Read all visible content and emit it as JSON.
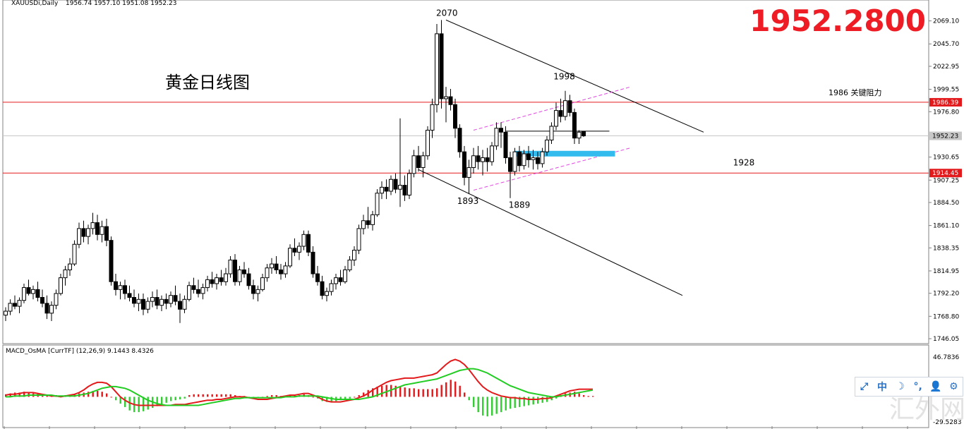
{
  "header": {
    "symbol": "XAUUSDi,Daily",
    "ohlc": "1956.74 1957.10 1951.08 1952.23"
  },
  "price_banner": {
    "text": "1952.2800",
    "color": "#ee1c24"
  },
  "chart_title": {
    "text": "黄金日线图"
  },
  "indicator_header": {
    "text": "MACD_OsMA [CurrTF] (12,26,9) 9.1443 8.4326"
  },
  "watermark": {
    "text": "汇外网"
  },
  "toolbar": {
    "icons": [
      "resize-icon",
      "chinese-input-icon",
      "moon-icon",
      "punctuation-icon",
      "user-icon",
      "settings-icon"
    ],
    "labels": [
      "⤢",
      "中",
      "☽",
      "°,",
      "👤",
      "⚙"
    ]
  },
  "chart_data": [
    {
      "type": "candlestick",
      "instrument": "XAUUSDi",
      "timeframe": "Daily",
      "last_price": 1952.23,
      "ylim": [
        1746.05,
        2076
      ],
      "y_ticks": [
        "2069.10",
        "2045.70",
        "2022.95",
        "1999.55",
        "1976.80",
        "1952.23",
        "1930.65",
        "1907.25",
        "1884.50",
        "1861.10",
        "1838.35",
        "1814.95",
        "1792.20",
        "1768.80",
        "1746.05"
      ],
      "price_tags": [
        {
          "label": "1986.39",
          "value": 1986.39,
          "color": "#e31a1c"
        },
        {
          "label": "1952.23",
          "value": 1952.23,
          "color": "#c8c8c8"
        },
        {
          "label": "1914.45",
          "value": 1914.45,
          "color": "#e31a1c"
        }
      ],
      "horizontal_lines": [
        {
          "value": 1986.39,
          "color": "#e31a1c",
          "note": "1986 关键阻力"
        },
        {
          "value": 1952.23,
          "color": "#c8c8c8"
        },
        {
          "value": 1914.45,
          "color": "#e31a1c"
        }
      ],
      "annotations": [
        "2070",
        "1998",
        "1986 关键阻力",
        "1893",
        "1889",
        "1928"
      ],
      "up_color": "#ffffff",
      "down_color": "#000000",
      "candles": [
        [
          1770,
          1778,
          1764,
          1774
        ],
        [
          1774,
          1786,
          1770,
          1782
        ],
        [
          1782,
          1790,
          1776,
          1779
        ],
        [
          1779,
          1788,
          1772,
          1785
        ],
        [
          1785,
          1802,
          1782,
          1798
        ],
        [
          1798,
          1806,
          1790,
          1792
        ],
        [
          1792,
          1800,
          1786,
          1796
        ],
        [
          1796,
          1804,
          1784,
          1788
        ],
        [
          1788,
          1796,
          1778,
          1782
        ],
        [
          1782,
          1790,
          1766,
          1772
        ],
        [
          1772,
          1784,
          1764,
          1780
        ],
        [
          1780,
          1796,
          1776,
          1792
        ],
        [
          1792,
          1812,
          1790,
          1808
        ],
        [
          1808,
          1820,
          1800,
          1816
        ],
        [
          1816,
          1828,
          1810,
          1822
        ],
        [
          1822,
          1846,
          1820,
          1842
        ],
        [
          1842,
          1864,
          1838,
          1858
        ],
        [
          1858,
          1866,
          1844,
          1850
        ],
        [
          1850,
          1862,
          1842,
          1858
        ],
        [
          1858,
          1874,
          1852,
          1864
        ],
        [
          1864,
          1872,
          1846,
          1852
        ],
        [
          1852,
          1866,
          1844,
          1860
        ],
        [
          1860,
          1868,
          1840,
          1846
        ],
        [
          1846,
          1850,
          1800,
          1804
        ],
        [
          1804,
          1812,
          1790,
          1796
        ],
        [
          1796,
          1804,
          1786,
          1800
        ],
        [
          1800,
          1806,
          1786,
          1792
        ],
        [
          1792,
          1800,
          1784,
          1788
        ],
        [
          1788,
          1796,
          1778,
          1782
        ],
        [
          1782,
          1792,
          1774,
          1786
        ],
        [
          1786,
          1792,
          1770,
          1776
        ],
        [
          1776,
          1788,
          1772,
          1784
        ],
        [
          1784,
          1794,
          1778,
          1788
        ],
        [
          1788,
          1796,
          1776,
          1780
        ],
        [
          1780,
          1790,
          1774,
          1786
        ],
        [
          1786,
          1792,
          1776,
          1782
        ],
        [
          1782,
          1794,
          1778,
          1790
        ],
        [
          1790,
          1800,
          1780,
          1784
        ],
        [
          1784,
          1792,
          1762,
          1776
        ],
        [
          1776,
          1790,
          1772,
          1786
        ],
        [
          1786,
          1804,
          1784,
          1800
        ],
        [
          1800,
          1808,
          1792,
          1796
        ],
        [
          1796,
          1806,
          1788,
          1792
        ],
        [
          1792,
          1802,
          1786,
          1798
        ],
        [
          1798,
          1810,
          1794,
          1806
        ],
        [
          1806,
          1814,
          1798,
          1802
        ],
        [
          1802,
          1812,
          1796,
          1808
        ],
        [
          1808,
          1816,
          1800,
          1804
        ],
        [
          1804,
          1818,
          1800,
          1812
        ],
        [
          1812,
          1830,
          1808,
          1826
        ],
        [
          1826,
          1832,
          1800,
          1804
        ],
        [
          1804,
          1820,
          1800,
          1816
        ],
        [
          1816,
          1824,
          1808,
          1812
        ],
        [
          1812,
          1818,
          1796,
          1800
        ],
        [
          1800,
          1806,
          1786,
          1792
        ],
        [
          1792,
          1800,
          1784,
          1796
        ],
        [
          1796,
          1812,
          1794,
          1808
        ],
        [
          1808,
          1822,
          1804,
          1818
        ],
        [
          1818,
          1828,
          1812,
          1822
        ],
        [
          1822,
          1830,
          1812,
          1816
        ],
        [
          1816,
          1822,
          1806,
          1812
        ],
        [
          1812,
          1824,
          1808,
          1820
        ],
        [
          1820,
          1842,
          1818,
          1838
        ],
        [
          1838,
          1848,
          1830,
          1834
        ],
        [
          1834,
          1844,
          1826,
          1840
        ],
        [
          1840,
          1856,
          1836,
          1852
        ],
        [
          1852,
          1856,
          1830,
          1834
        ],
        [
          1834,
          1840,
          1808,
          1812
        ],
        [
          1812,
          1820,
          1800,
          1804
        ],
        [
          1804,
          1810,
          1786,
          1790
        ],
        [
          1790,
          1798,
          1784,
          1794
        ],
        [
          1794,
          1806,
          1790,
          1802
        ],
        [
          1802,
          1812,
          1796,
          1808
        ],
        [
          1808,
          1816,
          1800,
          1804
        ],
        [
          1804,
          1820,
          1802,
          1816
        ],
        [
          1816,
          1830,
          1814,
          1826
        ],
        [
          1826,
          1840,
          1820,
          1836
        ],
        [
          1836,
          1862,
          1832,
          1858
        ],
        [
          1858,
          1872,
          1852,
          1866
        ],
        [
          1866,
          1880,
          1858,
          1862
        ],
        [
          1862,
          1876,
          1856,
          1872
        ],
        [
          1872,
          1898,
          1870,
          1894
        ],
        [
          1894,
          1906,
          1888,
          1900
        ],
        [
          1900,
          1908,
          1888,
          1896
        ],
        [
          1896,
          1912,
          1892,
          1908
        ],
        [
          1908,
          1914,
          1894,
          1898
        ],
        [
          1898,
          1970,
          1880,
          1902
        ],
        [
          1902,
          1912,
          1886,
          1892
        ],
        [
          1892,
          1918,
          1888,
          1914
        ],
        [
          1914,
          1938,
          1910,
          1932
        ],
        [
          1932,
          1942,
          1916,
          1920
        ],
        [
          1920,
          1936,
          1910,
          1932
        ],
        [
          1932,
          1962,
          1928,
          1958
        ],
        [
          1958,
          1990,
          1950,
          1984
        ],
        [
          1984,
          2066,
          1976,
          2056
        ],
        [
          2056,
          2070,
          1980,
          1990
        ],
        [
          1990,
          2002,
          1966,
          1992
        ],
        [
          1992,
          2000,
          1978,
          1984
        ],
        [
          1984,
          1990,
          1950,
          1960
        ],
        [
          1960,
          1964,
          1930,
          1936
        ],
        [
          1936,
          1942,
          1902,
          1910
        ],
        [
          1910,
          1928,
          1893,
          1920
        ],
        [
          1920,
          1940,
          1914,
          1932
        ],
        [
          1932,
          1942,
          1918,
          1926
        ],
        [
          1926,
          1938,
          1912,
          1930
        ],
        [
          1930,
          1940,
          1916,
          1926
        ],
        [
          1926,
          1946,
          1922,
          1942
        ],
        [
          1942,
          1966,
          1938,
          1960
        ],
        [
          1960,
          1966,
          1940,
          1956
        ],
        [
          1956,
          1962,
          1924,
          1930
        ],
        [
          1930,
          1936,
          1889,
          1916
        ],
        [
          1916,
          1940,
          1912,
          1936
        ],
        [
          1936,
          1942,
          1916,
          1922
        ],
        [
          1922,
          1938,
          1918,
          1934
        ],
        [
          1934,
          1942,
          1920,
          1928
        ],
        [
          1928,
          1938,
          1918,
          1930
        ],
        [
          1930,
          1936,
          1918,
          1924
        ],
        [
          1924,
          1940,
          1920,
          1936
        ],
        [
          1936,
          1952,
          1932,
          1948
        ],
        [
          1948,
          1966,
          1944,
          1962
        ],
        [
          1962,
          1986,
          1958,
          1978
        ],
        [
          1978,
          1990,
          1966,
          1972
        ],
        [
          1972,
          1998,
          1968,
          1988
        ],
        [
          1988,
          1994,
          1972,
          1976
        ],
        [
          1976,
          1980,
          1944,
          1950
        ],
        [
          1950,
          1958,
          1944,
          1956
        ],
        [
          1956.74,
          1957.1,
          1951.08,
          1952.23
        ]
      ],
      "macd": {
        "label": "MACD_OsMA [CurrTF] (12,26,9) 9.1443 8.4326",
        "ylim": [
          -29.5283,
          46.7836
        ],
        "y_ticks": [
          "46.7836",
          "-29.5283"
        ],
        "macd_value": 9.1443,
        "signal_value": 8.4326,
        "macd_color": "#e31a1c",
        "signal_color": "#22cc22",
        "histogram": [
          3,
          4,
          5,
          5,
          6,
          5,
          4,
          4,
          3,
          2,
          2,
          2,
          1,
          2,
          2,
          3,
          4,
          5,
          6,
          7,
          7,
          6,
          4,
          0,
          -4,
          -8,
          -12,
          -16,
          -18,
          -18,
          -17,
          -15,
          -13,
          -11,
          -9,
          -7,
          -5,
          -4,
          -3,
          -2,
          2,
          3,
          3,
          3,
          3,
          3,
          3,
          3,
          3,
          3,
          2,
          1,
          1,
          0,
          -1,
          -1,
          0,
          1,
          2,
          2,
          1,
          1,
          2,
          2,
          2,
          3,
          2,
          0,
          -2,
          -5,
          -6,
          -6,
          -5,
          -4,
          -3,
          -2,
          0,
          2,
          5,
          8,
          10,
          12,
          13,
          14,
          14,
          13,
          12,
          11,
          10,
          10,
          9,
          9,
          9,
          9,
          10,
          14,
          17,
          20,
          18,
          13,
          5,
          -4,
          -12,
          -18,
          -22,
          -23,
          -22,
          -20,
          -18,
          -16,
          -14,
          -13,
          -12,
          -11,
          -10,
          -9,
          -8,
          -7,
          -6,
          -4,
          -2,
          2,
          4,
          5,
          6,
          4,
          2,
          1,
          1
        ],
        "macd_line": [
          2,
          3,
          3,
          4,
          5,
          5,
          5,
          4,
          3,
          2,
          1,
          1,
          0,
          1,
          2,
          3,
          5,
          8,
          12,
          15,
          17,
          17,
          16,
          12,
          6,
          0,
          -4,
          -7,
          -9,
          -10,
          -10,
          -10,
          -10,
          -10,
          -10,
          -10,
          -10,
          -9,
          -9,
          -9,
          -8,
          -7,
          -6,
          -5,
          -4,
          -4,
          -3,
          -3,
          -2,
          -1,
          0,
          0,
          0,
          -1,
          -2,
          -3,
          -3,
          -3,
          -2,
          -1,
          0,
          1,
          2,
          2,
          3,
          4,
          4,
          2,
          0,
          -3,
          -5,
          -6,
          -6,
          -6,
          -5,
          -4,
          -3,
          -1,
          1,
          4,
          8,
          11,
          14,
          17,
          19,
          20,
          21,
          22,
          22,
          22,
          23,
          24,
          25,
          26,
          28,
          33,
          38,
          42,
          44,
          42,
          38,
          32,
          25,
          18,
          12,
          8,
          5,
          3,
          1,
          0,
          -1,
          -1,
          -2,
          -2,
          -3,
          -3,
          -3,
          -2,
          -2,
          -1,
          1,
          3,
          5,
          7,
          8,
          9,
          9,
          9,
          9
        ],
        "signal_line": [
          0,
          0,
          1,
          1,
          1,
          2,
          2,
          2,
          2,
          2,
          2,
          1,
          1,
          1,
          1,
          1,
          2,
          3,
          4,
          6,
          8,
          10,
          11,
          12,
          12,
          11,
          10,
          8,
          5,
          2,
          -1,
          -4,
          -6,
          -8,
          -9,
          -10,
          -10,
          -10,
          -10,
          -10,
          -10,
          -10,
          -10,
          -9,
          -8,
          -7,
          -6,
          -5,
          -4,
          -3,
          -2,
          -2,
          -1,
          -1,
          -1,
          -1,
          -1,
          -1,
          -1,
          -1,
          -1,
          0,
          0,
          0,
          1,
          1,
          1,
          1,
          1,
          0,
          -1,
          -2,
          -3,
          -3,
          -3,
          -3,
          -3,
          -3,
          -2,
          -1,
          0,
          2,
          4,
          6,
          8,
          10,
          12,
          14,
          15,
          16,
          17,
          18,
          19,
          20,
          21,
          23,
          25,
          27,
          29,
          31,
          32,
          33,
          33,
          32,
          30,
          28,
          25,
          22,
          19,
          16,
          13,
          11,
          9,
          7,
          5,
          4,
          3,
          2,
          1,
          0,
          0,
          1,
          2,
          3,
          4,
          5,
          6,
          7,
          8
        ]
      }
    }
  ]
}
